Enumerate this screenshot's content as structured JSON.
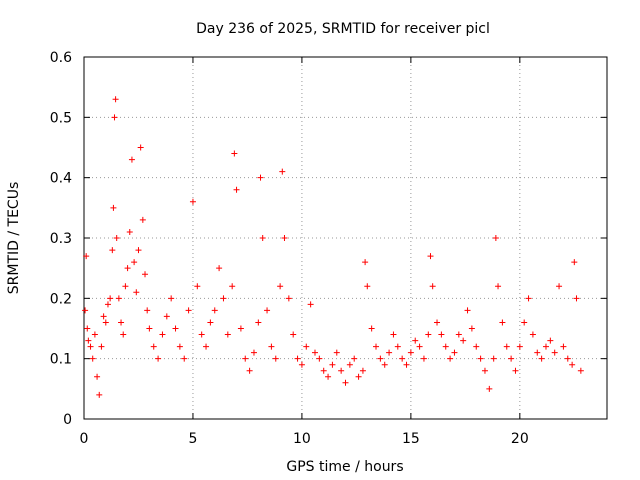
{
  "chart_data": {
    "type": "scatter",
    "title": "Day 236 of 2025, SRMTID for receiver picl",
    "xlabel": "GPS time / hours",
    "ylabel": "SRMTID / TECUs",
    "xlim": [
      0,
      24
    ],
    "ylim": [
      0,
      0.6
    ],
    "xticks": [
      0,
      5,
      10,
      15,
      20
    ],
    "yticks": [
      0,
      0.1,
      0.2,
      0.3,
      0.4,
      0.5,
      0.6
    ],
    "grid": true,
    "marker": "+",
    "marker_color": "#ff0000",
    "series": [
      {
        "name": "picl",
        "x": [
          0.05,
          0.1,
          0.15,
          0.2,
          0.3,
          0.4,
          0.5,
          0.6,
          0.7,
          0.8,
          0.9,
          1.0,
          1.1,
          1.2,
          1.3,
          1.35,
          1.4,
          1.45,
          1.5,
          1.6,
          1.7,
          1.8,
          1.9,
          2.0,
          2.1,
          2.2,
          2.3,
          2.4,
          2.5,
          2.6,
          2.7,
          2.8,
          2.9,
          3.0,
          3.2,
          3.4,
          3.6,
          3.8,
          4.0,
          4.2,
          4.4,
          4.6,
          4.8,
          5.0,
          5.2,
          5.4,
          5.6,
          5.8,
          6.0,
          6.2,
          6.4,
          6.6,
          6.8,
          6.9,
          7.0,
          7.2,
          7.4,
          7.6,
          7.8,
          8.0,
          8.1,
          8.2,
          8.4,
          8.6,
          8.8,
          9.0,
          9.1,
          9.2,
          9.4,
          9.6,
          9.8,
          10.0,
          10.2,
          10.4,
          10.6,
          10.8,
          11.0,
          11.2,
          11.4,
          11.6,
          11.8,
          12.0,
          12.2,
          12.4,
          12.6,
          12.8,
          12.9,
          13.0,
          13.2,
          13.4,
          13.6,
          13.8,
          14.0,
          14.2,
          14.4,
          14.6,
          14.8,
          15.0,
          15.2,
          15.4,
          15.6,
          15.8,
          15.9,
          16.0,
          16.2,
          16.4,
          16.6,
          16.8,
          17.0,
          17.2,
          17.4,
          17.6,
          17.8,
          18.0,
          18.2,
          18.4,
          18.6,
          18.8,
          18.9,
          19.0,
          19.2,
          19.4,
          19.6,
          19.8,
          20.0,
          20.2,
          20.4,
          20.6,
          20.8,
          21.0,
          21.2,
          21.4,
          21.6,
          21.8,
          22.0,
          22.2,
          22.4,
          22.5,
          22.6,
          22.8
        ],
        "values": [
          0.18,
          0.27,
          0.15,
          0.13,
          0.12,
          0.1,
          0.14,
          0.07,
          0.04,
          0.12,
          0.17,
          0.16,
          0.19,
          0.2,
          0.28,
          0.35,
          0.5,
          0.53,
          0.3,
          0.2,
          0.16,
          0.14,
          0.22,
          0.25,
          0.31,
          0.43,
          0.26,
          0.21,
          0.28,
          0.45,
          0.33,
          0.24,
          0.18,
          0.15,
          0.12,
          0.1,
          0.14,
          0.17,
          0.2,
          0.15,
          0.12,
          0.1,
          0.18,
          0.36,
          0.22,
          0.14,
          0.12,
          0.16,
          0.18,
          0.25,
          0.2,
          0.14,
          0.22,
          0.44,
          0.38,
          0.15,
          0.1,
          0.08,
          0.11,
          0.16,
          0.4,
          0.3,
          0.18,
          0.12,
          0.1,
          0.22,
          0.41,
          0.3,
          0.2,
          0.14,
          0.1,
          0.09,
          0.12,
          0.19,
          0.11,
          0.1,
          0.08,
          0.07,
          0.09,
          0.11,
          0.08,
          0.06,
          0.09,
          0.1,
          0.07,
          0.08,
          0.26,
          0.22,
          0.15,
          0.12,
          0.1,
          0.09,
          0.11,
          0.14,
          0.12,
          0.1,
          0.09,
          0.11,
          0.13,
          0.12,
          0.1,
          0.14,
          0.27,
          0.22,
          0.16,
          0.14,
          0.12,
          0.1,
          0.11,
          0.14,
          0.13,
          0.18,
          0.15,
          0.12,
          0.1,
          0.08,
          0.05,
          0.1,
          0.3,
          0.22,
          0.16,
          0.12,
          0.1,
          0.08,
          0.12,
          0.16,
          0.2,
          0.14,
          0.11,
          0.1,
          0.12,
          0.13,
          0.11,
          0.22,
          0.12,
          0.1,
          0.09,
          0.26,
          0.2,
          0.08
        ]
      }
    ]
  }
}
